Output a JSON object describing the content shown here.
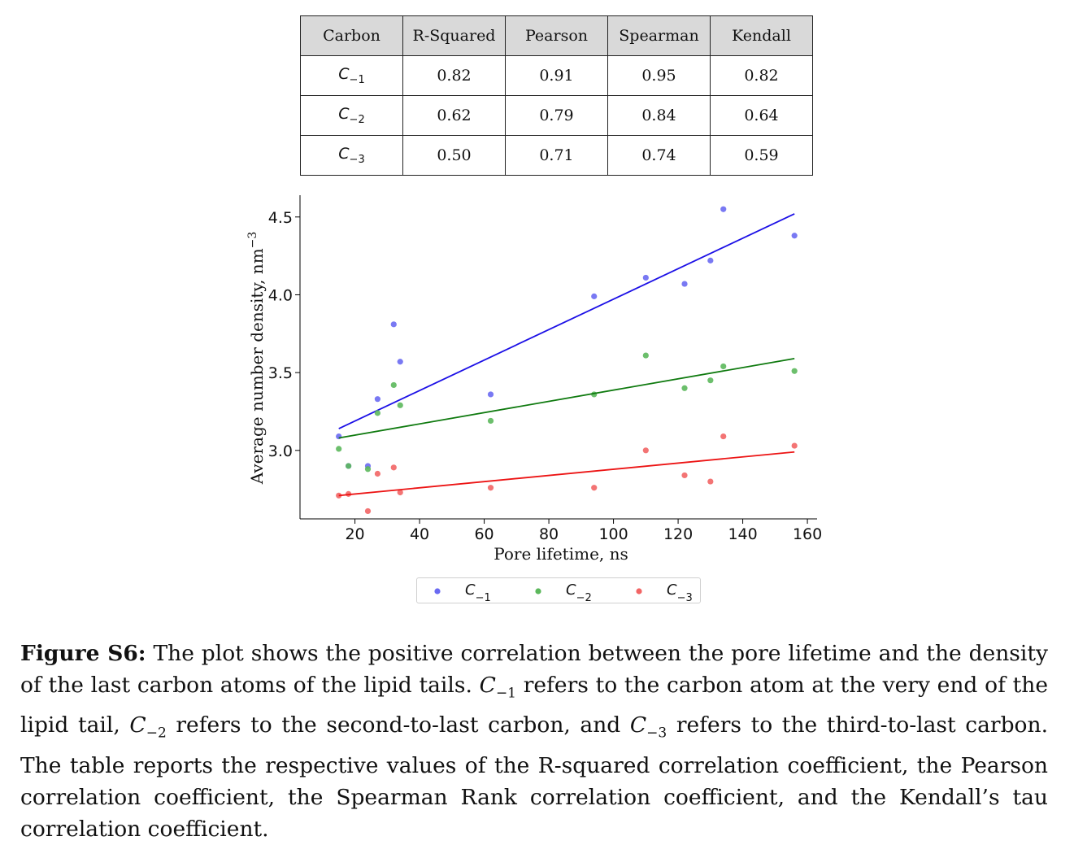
{
  "table": {
    "headers": [
      "Carbon",
      "R-Squared",
      "Pearson",
      "Spearman",
      "Kendall"
    ],
    "rows": [
      {
        "carbon": "C",
        "sub": "−1",
        "values": [
          "0.82",
          "0.91",
          "0.95",
          "0.82"
        ]
      },
      {
        "carbon": "C",
        "sub": "−2",
        "values": [
          "0.62",
          "0.79",
          "0.84",
          "0.64"
        ]
      },
      {
        "carbon": "C",
        "sub": "−3",
        "values": [
          "0.50",
          "0.71",
          "0.74",
          "0.59"
        ]
      }
    ]
  },
  "chart_data": {
    "type": "scatter",
    "xlabel": "Pore lifetime, ns",
    "ylabel": "Average number density, nm",
    "ylabel_exp": "−3",
    "xlim": [
      3,
      163
    ],
    "ylim": [
      2.56,
      4.64
    ],
    "xticks": [
      20,
      40,
      60,
      80,
      100,
      120,
      140,
      160
    ],
    "yticks": [
      3.0,
      3.5,
      4.0,
      4.5
    ],
    "ytick_labels": [
      "3.0",
      "3.5",
      "4.0",
      "4.5"
    ],
    "legend_position": "bottom-center",
    "series": [
      {
        "name": "C",
        "sub": "−1",
        "color": "#6a6af2",
        "line_color": "#1c10e6",
        "x": [
          15,
          18,
          24,
          27,
          32,
          34,
          62,
          94,
          110,
          122,
          130,
          134,
          156
        ],
        "y": [
          3.09,
          2.9,
          2.9,
          3.33,
          3.81,
          3.57,
          3.36,
          3.99,
          4.11,
          4.07,
          4.22,
          4.55,
          4.38
        ],
        "fit": [
          [
            15,
            3.14
          ],
          [
            156,
            4.52
          ]
        ]
      },
      {
        "name": "C",
        "sub": "−2",
        "color": "#5cb85c",
        "line_color": "#0f7a0f",
        "x": [
          15,
          18,
          24,
          27,
          32,
          34,
          62,
          94,
          110,
          122,
          130,
          134,
          156
        ],
        "y": [
          3.01,
          2.9,
          2.88,
          3.24,
          3.42,
          3.29,
          3.19,
          3.36,
          3.61,
          3.4,
          3.45,
          3.54,
          3.51
        ],
        "fit": [
          [
            15,
            3.08
          ],
          [
            156,
            3.59
          ]
        ]
      },
      {
        "name": "C",
        "sub": "−3",
        "color": "#f26565",
        "line_color": "#ec1414",
        "x": [
          15,
          18,
          24,
          27,
          32,
          34,
          62,
          94,
          110,
          122,
          130,
          134,
          156
        ],
        "y": [
          2.71,
          2.72,
          2.61,
          2.85,
          2.89,
          2.73,
          2.76,
          2.76,
          3.0,
          2.84,
          2.8,
          3.09,
          3.03
        ],
        "fit": [
          [
            15,
            2.71
          ],
          [
            156,
            2.99
          ]
        ]
      }
    ]
  },
  "caption": {
    "label": "Figure S6:",
    "text1": " The plot shows the positive correlation between the pore lifetime and the density of the last carbon atoms of the lipid tails. ",
    "c": "C",
    "sub1": "−1",
    "text2": " refers to the carbon atom at the very end of the lipid tail, ",
    "sub2": "−2",
    "text3": " refers to the second-to-last carbon, and ",
    "sub3": "−3",
    "text4": " refers to the third-to-last carbon. The table reports the respective values of the R-squared correlation coefficient, the Pearson correlation coefficient, the Spearman Rank correlation coefficient, and the Kendall’s tau correlation coefficient."
  }
}
